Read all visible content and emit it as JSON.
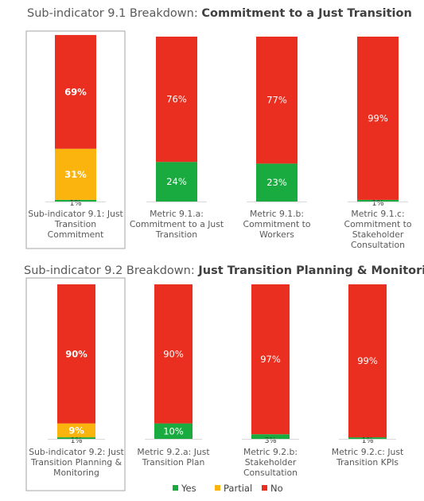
{
  "chart_data": [
    {
      "type": "bar",
      "stacked": true,
      "title_prefix": "Sub-indicator 9.1 Breakdown: ",
      "title_bold": "Commitment to a Just Transition",
      "categories": [
        [
          "Sub-indicator 9.1: Just",
          "Transition",
          "Commitment"
        ],
        [
          "Metric 9.1.a:",
          "Commitment to a Just",
          "Transition"
        ],
        [
          "Metric 9.1.b:",
          "Commitment to",
          "Workers"
        ],
        [
          "Metric 9.1.c:",
          "Commitment to",
          "Stakeholder",
          "Consultation"
        ]
      ],
      "series": [
        {
          "name": "Yes",
          "values": [
            1,
            24,
            23,
            1
          ]
        },
        {
          "name": "Partial",
          "values": [
            31,
            0,
            0,
            0
          ]
        },
        {
          "name": "No",
          "values": [
            69,
            76,
            77,
            99
          ]
        }
      ],
      "data_labels": {
        "Yes": [
          "1%",
          "24%",
          "23%",
          "1%"
        ],
        "Partial": [
          "31%",
          "",
          "",
          ""
        ],
        "No": [
          "69%",
          "76%",
          "77%",
          "99%"
        ]
      },
      "highlighted_category": 0,
      "ylim": [
        0,
        100
      ]
    },
    {
      "type": "bar",
      "stacked": true,
      "title_prefix": "Sub-indicator 9.2 Breakdown: ",
      "title_bold": "Just Transition Planning & Monitoring",
      "categories": [
        [
          "Sub-indicator 9.2: Just",
          "Transition Planning &",
          "Monitoring"
        ],
        [
          "Metric 9.2.a: Just",
          "Transition Plan"
        ],
        [
          "Metric 9.2.b:",
          "Stakeholder",
          "Consultation"
        ],
        [
          "Metric 9.2.c: Just",
          "Transition KPIs"
        ]
      ],
      "series": [
        {
          "name": "Yes",
          "values": [
            1,
            10,
            3,
            1
          ]
        },
        {
          "name": "Partial",
          "values": [
            9,
            0,
            0,
            0
          ]
        },
        {
          "name": "No",
          "values": [
            90,
            90,
            97,
            99
          ]
        }
      ],
      "data_labels": {
        "Yes": [
          "1%",
          "10%",
          "3%",
          "1%"
        ],
        "Partial": [
          "9%",
          "",
          "",
          ""
        ],
        "No": [
          "90%",
          "90%",
          "97%",
          "99%"
        ]
      },
      "highlighted_category": 0,
      "ylim": [
        0,
        100
      ]
    }
  ],
  "legend": {
    "position": "bottom",
    "items": [
      {
        "name": "Yes",
        "color": "#1aab40"
      },
      {
        "name": "Partial",
        "color": "#fbb40d"
      },
      {
        "name": "No",
        "color": "#ea2e1f"
      }
    ]
  },
  "colors": {
    "Yes": "#1aab40",
    "Partial": "#fbb40d",
    "No": "#ea2e1f"
  }
}
